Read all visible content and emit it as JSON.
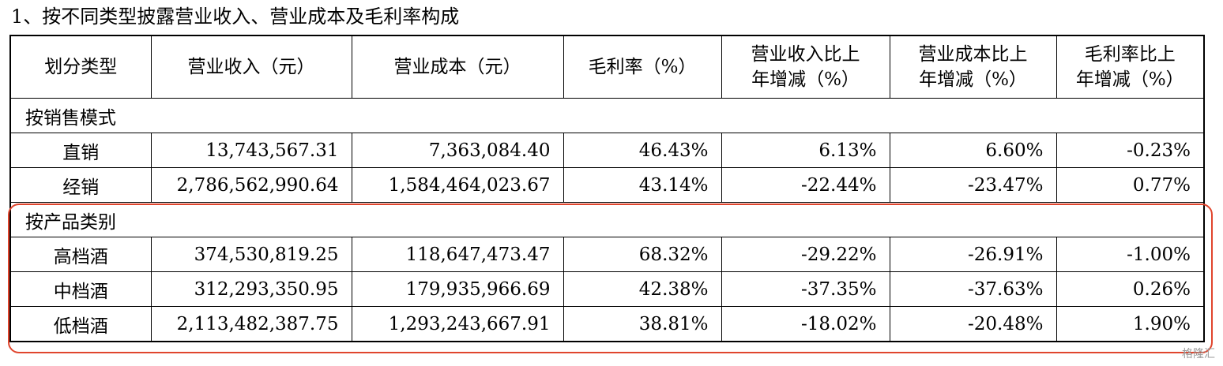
{
  "title": "1、按不同类型披露营业收入、营业成本及毛利率构成",
  "table": {
    "header": [
      [
        "划分类型"
      ],
      [
        "营业收入（元）"
      ],
      [
        "营业成本（元）"
      ],
      [
        "毛利率（%）"
      ],
      [
        "营业收入比上",
        "年增减（%）"
      ],
      [
        "营业成本比上",
        "年增减（%）"
      ],
      [
        "毛利率比上",
        "年增减（%）"
      ]
    ],
    "sections": [
      {
        "label": "按销售模式",
        "rows": [
          [
            "直销",
            "13,743,567.31",
            "7,363,084.40",
            "46.43%",
            "6.13%",
            "6.60%",
            "-0.23%"
          ],
          [
            "经销",
            "2,786,562,990.64",
            "1,584,464,023.67",
            "43.14%",
            "-22.44%",
            "-23.47%",
            "0.77%"
          ]
        ]
      },
      {
        "label": "按产品类别",
        "rows": [
          [
            "高档酒",
            "374,530,819.25",
            "118,647,473.47",
            "68.32%",
            "-29.22%",
            "-26.91%",
            "-1.00%"
          ],
          [
            "中档酒",
            "312,293,350.95",
            "179,935,966.69",
            "42.38%",
            "-37.35%",
            "-37.63%",
            "0.26%"
          ],
          [
            "低档酒",
            "2,113,482,387.75",
            "1,293,243,667.91",
            "38.81%",
            "-18.02%",
            "-20.48%",
            "1.90%"
          ]
        ]
      }
    ]
  },
  "watermark": "格隆汇"
}
